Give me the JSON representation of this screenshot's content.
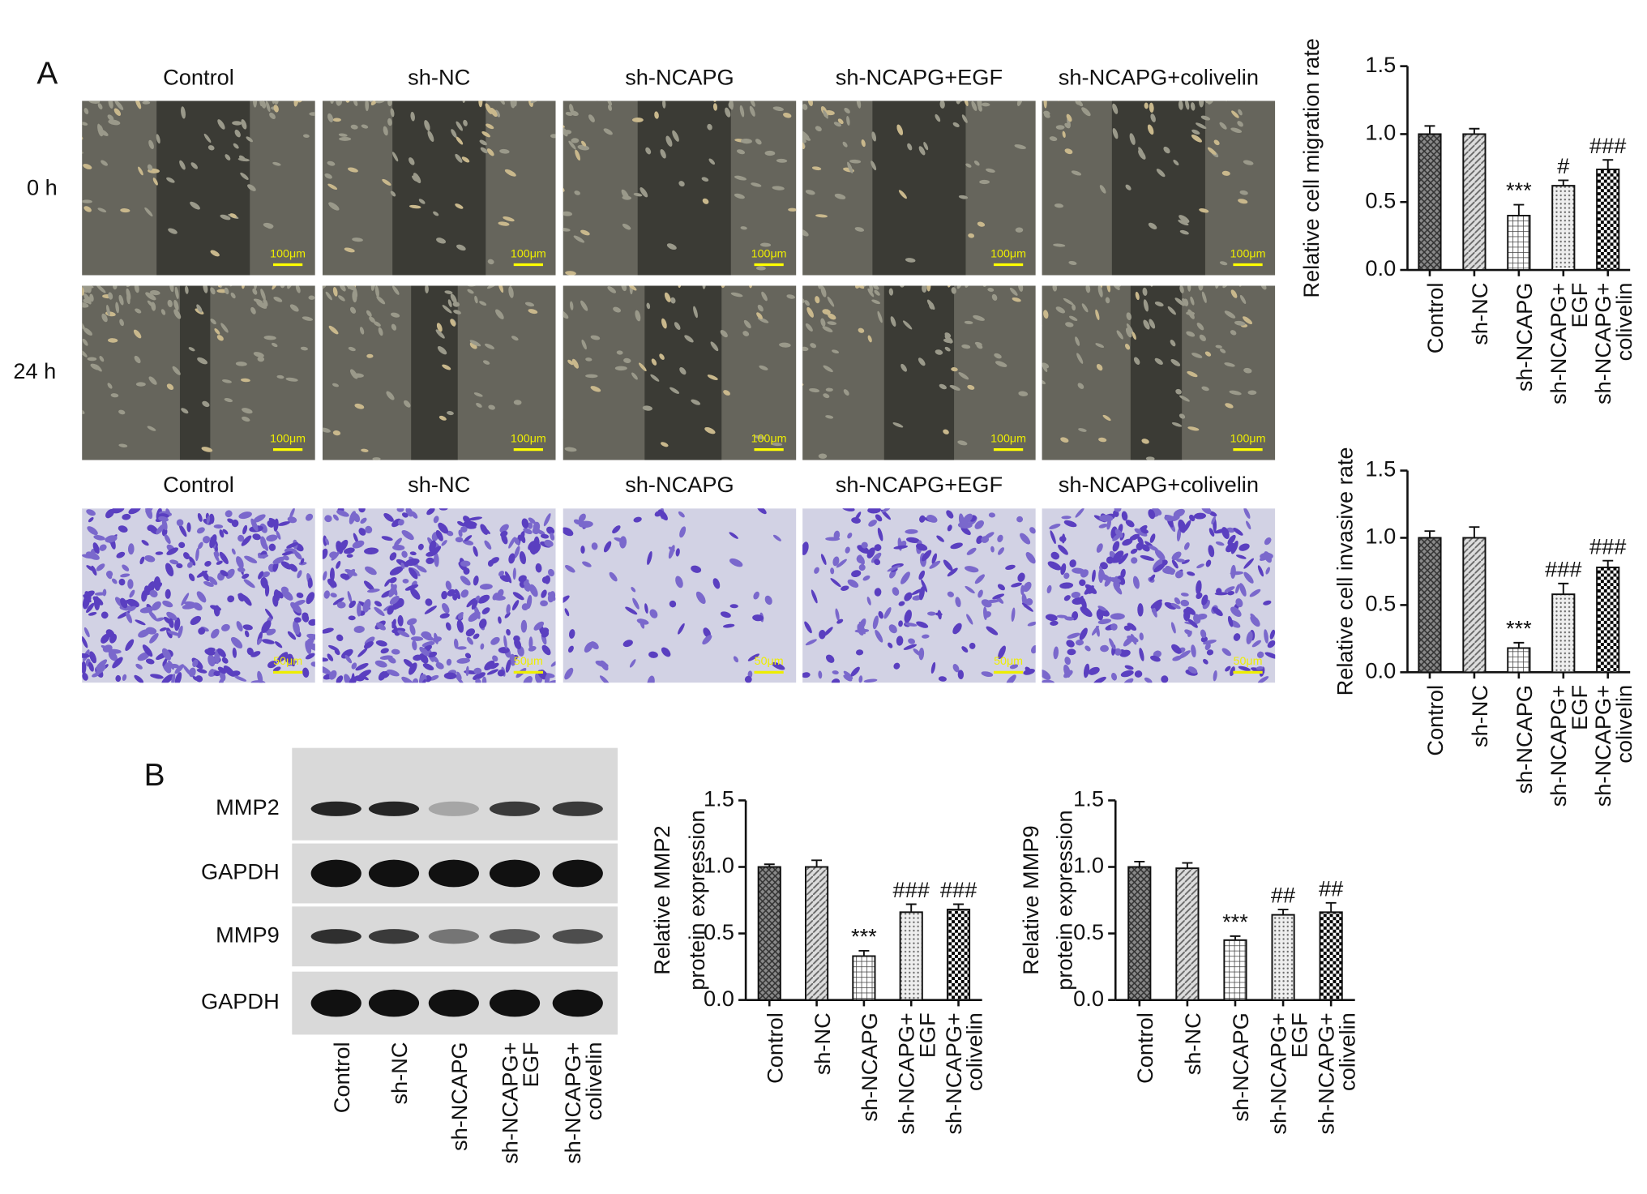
{
  "panel_labels": [
    "A",
    "B"
  ],
  "wound_healing": {
    "groups": [
      "Control",
      "sh-NC",
      "sh-NCAPG",
      "sh-NCAPG+EGF",
      "sh-NCAPG+colivelin"
    ],
    "rows": [
      "0 h",
      "24 h"
    ],
    "scale_bar": "100μm"
  },
  "invasion": {
    "groups": [
      "Control",
      "sh-NC",
      "sh-NCAPG",
      "sh-NCAPG+EGF",
      "sh-NCAPG+colivelin"
    ],
    "scale_bar": "50μm"
  },
  "western_blot": {
    "proteins": [
      "MMP2",
      "GAPDH",
      "MMP9",
      "GAPDH"
    ],
    "lanes": [
      [
        "Control"
      ],
      [
        "sh-NC"
      ],
      [
        "sh-NCAPG"
      ],
      [
        "sh-NCAPG+",
        "EGF"
      ],
      [
        "sh-NCAPG+",
        "colivelin"
      ]
    ]
  },
  "chart_data": [
    {
      "type": "bar",
      "y_label": [
        "Relative cell migration rate"
      ],
      "categories": [
        [
          "Control"
        ],
        [
          "sh-NC"
        ],
        [
          "sh-NCAPG"
        ],
        [
          "sh-NCAPG+",
          "EGF"
        ],
        [
          "sh-NCAPG+",
          "colivelin"
        ]
      ],
      "values": [
        1.0,
        1.0,
        0.4,
        0.62,
        0.74
      ],
      "errors": [
        0.06,
        0.04,
        0.08,
        0.04,
        0.07
      ],
      "annotations": [
        null,
        null,
        "***",
        "#",
        "###"
      ],
      "ylim": [
        0,
        1.5
      ],
      "yticks": [
        {
          "value": 0,
          "label": "0.0"
        },
        0.5,
        {
          "value": 1,
          "label": "1.0"
        },
        1.5
      ],
      "patterns": [
        "crosshatch",
        "diagonal",
        "grid",
        "dots",
        "checker"
      ]
    },
    {
      "type": "bar",
      "y_label": [
        "Relative cell invasive rate"
      ],
      "categories": [
        [
          "Control"
        ],
        [
          "sh-NC"
        ],
        [
          "sh-NCAPG"
        ],
        [
          "sh-NCAPG+",
          "EGF"
        ],
        [
          "sh-NCAPG+",
          "colivelin"
        ]
      ],
      "values": [
        1.0,
        1.0,
        0.18,
        0.58,
        0.78
      ],
      "errors": [
        0.05,
        0.08,
        0.04,
        0.08,
        0.05
      ],
      "annotations": [
        null,
        null,
        "***",
        "###",
        "###"
      ],
      "ylim": [
        0,
        1.5
      ],
      "yticks": [
        {
          "value": 0,
          "label": "0.0"
        },
        0.5,
        {
          "value": 1,
          "label": "1.0"
        },
        1.5
      ],
      "patterns": [
        "crosshatch",
        "diagonal",
        "grid",
        "dots",
        "checker"
      ]
    },
    {
      "type": "bar",
      "y_label": [
        "Relative MMP2",
        "protein expression"
      ],
      "categories": [
        [
          "Control"
        ],
        [
          "sh-NC"
        ],
        [
          "sh-NCAPG"
        ],
        [
          "sh-NCAPG+",
          "EGF"
        ],
        [
          "sh-NCAPG+",
          "colivelin"
        ]
      ],
      "values": [
        1.0,
        1.0,
        0.33,
        0.66,
        0.68
      ],
      "errors": [
        0.02,
        0.05,
        0.04,
        0.06,
        0.04
      ],
      "annotations": [
        null,
        null,
        "***",
        "###",
        "###"
      ],
      "ylim": [
        0,
        1.5
      ],
      "yticks": [
        {
          "value": 0,
          "label": "0.0"
        },
        0.5,
        {
          "value": 1,
          "label": "1.0"
        },
        1.5
      ],
      "patterns": [
        "crosshatch",
        "diagonal",
        "grid",
        "dots",
        "checker"
      ]
    },
    {
      "type": "bar",
      "y_label": [
        "Relative MMP9",
        "protein expression"
      ],
      "categories": [
        [
          "Control"
        ],
        [
          "sh-NC"
        ],
        [
          "sh-NCAPG"
        ],
        [
          "sh-NCAPG+",
          "EGF"
        ],
        [
          "sh-NCAPG+",
          "colivelin"
        ]
      ],
      "values": [
        1.0,
        0.99,
        0.45,
        0.64,
        0.66
      ],
      "errors": [
        0.04,
        0.04,
        0.03,
        0.04,
        0.07
      ],
      "annotations": [
        null,
        null,
        "***",
        "##",
        "##"
      ],
      "ylim": [
        0,
        1.5
      ],
      "yticks": [
        {
          "value": 0,
          "label": "0.0"
        },
        0.5,
        {
          "value": 1,
          "label": "1.0"
        },
        1.5
      ],
      "patterns": [
        "crosshatch",
        "diagonal",
        "grid",
        "dots",
        "checker"
      ]
    }
  ]
}
